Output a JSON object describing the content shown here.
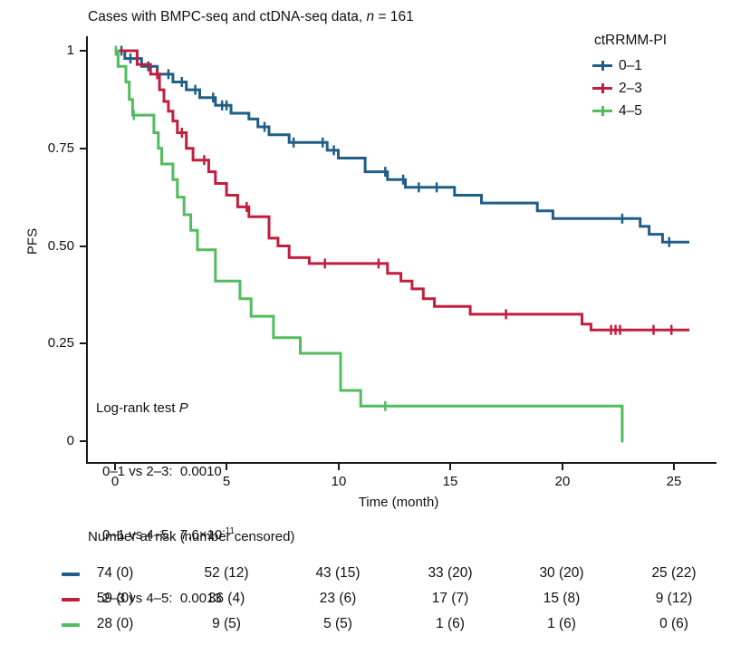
{
  "title": {
    "part1": "Cases with BMPC-seq and ctDNA-seq data, ",
    "n": "n",
    "part2": " = 161"
  },
  "axes": {
    "x_title": "Time (month)",
    "y_title": "PFS",
    "x_tick_labels": [
      "0",
      "5",
      "10",
      "15",
      "20",
      "25"
    ],
    "y_tick_labels": [
      "1",
      "0.75",
      "0.50",
      "0.25",
      "0"
    ]
  },
  "legend": {
    "title": "ctRRMM-PI"
  },
  "annotation": {
    "title_part1": "Log-rank test ",
    "title_p": "P",
    "lines": [
      {
        "text": "0–1 vs 2–3:  0.0010",
        "sup": ""
      },
      {
        "text": "0–1 vs 4–5:  7.6×10",
        "sup": "-11"
      },
      {
        "text": "2–3 vs 4–5:  0.0013",
        "sup": ""
      }
    ]
  },
  "chart_data": {
    "type": "line",
    "subtype": "kaplan-meier-step",
    "title": "Cases with BMPC-seq and ctDNA-seq data, n = 161",
    "xlabel": "Time (month)",
    "ylabel": "PFS",
    "xlim": [
      0,
      26.5
    ],
    "ylim": [
      0,
      1
    ],
    "x_ticks": [
      0,
      5,
      10,
      15,
      20,
      25
    ],
    "y_ticks": [
      0,
      0.25,
      0.5,
      0.75,
      1
    ],
    "grid": false,
    "legend_title": "ctRRMM-PI",
    "legend_position": "top-right",
    "annotations": [
      "Log-rank test P",
      "0–1 vs 2–3: 0.0010",
      "0–1 vs 4–5: 7.6×10^-11",
      "2–3 vs 4–5: 0.0013"
    ],
    "series": [
      {
        "name": "0–1",
        "color": "#215e87",
        "n": 74,
        "end_time": 25.7,
        "steps": [
          [
            0,
            1.0
          ],
          [
            0.45,
            0.98
          ],
          [
            1.2,
            0.96
          ],
          [
            1.9,
            0.94
          ],
          [
            2.6,
            0.92
          ],
          [
            3.2,
            0.9
          ],
          [
            3.8,
            0.88
          ],
          [
            4.5,
            0.86
          ],
          [
            5.2,
            0.84
          ],
          [
            6.0,
            0.825
          ],
          [
            6.4,
            0.805
          ],
          [
            6.9,
            0.785
          ],
          [
            7.8,
            0.765
          ],
          [
            9.5,
            0.745
          ],
          [
            10.0,
            0.725
          ],
          [
            11.2,
            0.69
          ],
          [
            12.2,
            0.67
          ],
          [
            13.0,
            0.65
          ],
          [
            15.2,
            0.63
          ],
          [
            16.4,
            0.61
          ],
          [
            18.9,
            0.59
          ],
          [
            19.6,
            0.57
          ],
          [
            23.5,
            0.55
          ],
          [
            23.9,
            0.53
          ],
          [
            24.5,
            0.51
          ]
        ],
        "censor_times": [
          0.3,
          0.7,
          1.0,
          1.5,
          2.4,
          3.0,
          3.6,
          4.4,
          4.8,
          5.0,
          6.7,
          8.0,
          9.3,
          9.8,
          12.1,
          12.9,
          13.6,
          14.4,
          22.7,
          24.8
        ]
      },
      {
        "name": "2–3",
        "color": "#c01f3f",
        "n": 59,
        "end_time": 25.7,
        "steps": [
          [
            0,
            1.0
          ],
          [
            1.0,
            0.965
          ],
          [
            1.6,
            0.94
          ],
          [
            2.0,
            0.9
          ],
          [
            2.2,
            0.87
          ],
          [
            2.4,
            0.845
          ],
          [
            2.6,
            0.82
          ],
          [
            2.8,
            0.79
          ],
          [
            3.2,
            0.75
          ],
          [
            3.5,
            0.72
          ],
          [
            4.2,
            0.69
          ],
          [
            4.5,
            0.66
          ],
          [
            5.0,
            0.63
          ],
          [
            5.5,
            0.6
          ],
          [
            6.0,
            0.575
          ],
          [
            6.9,
            0.52
          ],
          [
            7.3,
            0.5
          ],
          [
            7.8,
            0.47
          ],
          [
            8.7,
            0.455
          ],
          [
            12.2,
            0.43
          ],
          [
            12.8,
            0.41
          ],
          [
            13.3,
            0.39
          ],
          [
            13.8,
            0.365
          ],
          [
            14.3,
            0.345
          ],
          [
            15.9,
            0.325
          ],
          [
            20.9,
            0.3
          ],
          [
            21.3,
            0.285
          ]
        ],
        "censor_times": [
          1.9,
          3.0,
          4.0,
          5.9,
          9.4,
          11.8,
          17.5,
          22.2,
          22.4,
          22.6,
          24.1,
          24.9
        ]
      },
      {
        "name": "4–5",
        "color": "#51bd5f",
        "n": 28,
        "end_time": 22.75,
        "steps": [
          [
            0,
            1.0
          ],
          [
            0.15,
            0.96
          ],
          [
            0.5,
            0.92
          ],
          [
            0.65,
            0.875
          ],
          [
            0.8,
            0.835
          ],
          [
            1.75,
            0.79
          ],
          [
            1.95,
            0.75
          ],
          [
            2.1,
            0.71
          ],
          [
            2.6,
            0.67
          ],
          [
            2.8,
            0.625
          ],
          [
            3.1,
            0.58
          ],
          [
            3.4,
            0.54
          ],
          [
            3.7,
            0.49
          ],
          [
            4.5,
            0.41
          ],
          [
            5.6,
            0.365
          ],
          [
            6.1,
            0.32
          ],
          [
            7.1,
            0.265
          ],
          [
            8.3,
            0.225
          ],
          [
            10.1,
            0.13
          ],
          [
            11.0,
            0.09
          ],
          [
            22.7,
            0.0
          ]
        ],
        "censor_times": [
          0.05,
          0.85,
          12.1
        ]
      }
    ],
    "risk_table": {
      "header": "Number at risk (number censored)",
      "times": [
        0,
        5,
        10,
        15,
        20,
        25
      ],
      "rows": [
        {
          "group": "0–1",
          "color": "#215e87",
          "counts": [
            "74 (0)",
            "52 (12)",
            "43 (15)",
            "33 (20)",
            "30 (20)",
            "25 (22)"
          ]
        },
        {
          "group": "2–3",
          "color": "#c01f3f",
          "counts": [
            "59 (0)",
            "36 (4)",
            "23 (6)",
            "17 (7)",
            "15 (8)",
            "9 (12)"
          ]
        },
        {
          "group": "4–5",
          "color": "#51bd5f",
          "counts": [
            "28 (0)",
            "9 (5)",
            "5 (5)",
            "1 (6)",
            "1 (6)",
            "0 (6)"
          ]
        }
      ]
    }
  }
}
